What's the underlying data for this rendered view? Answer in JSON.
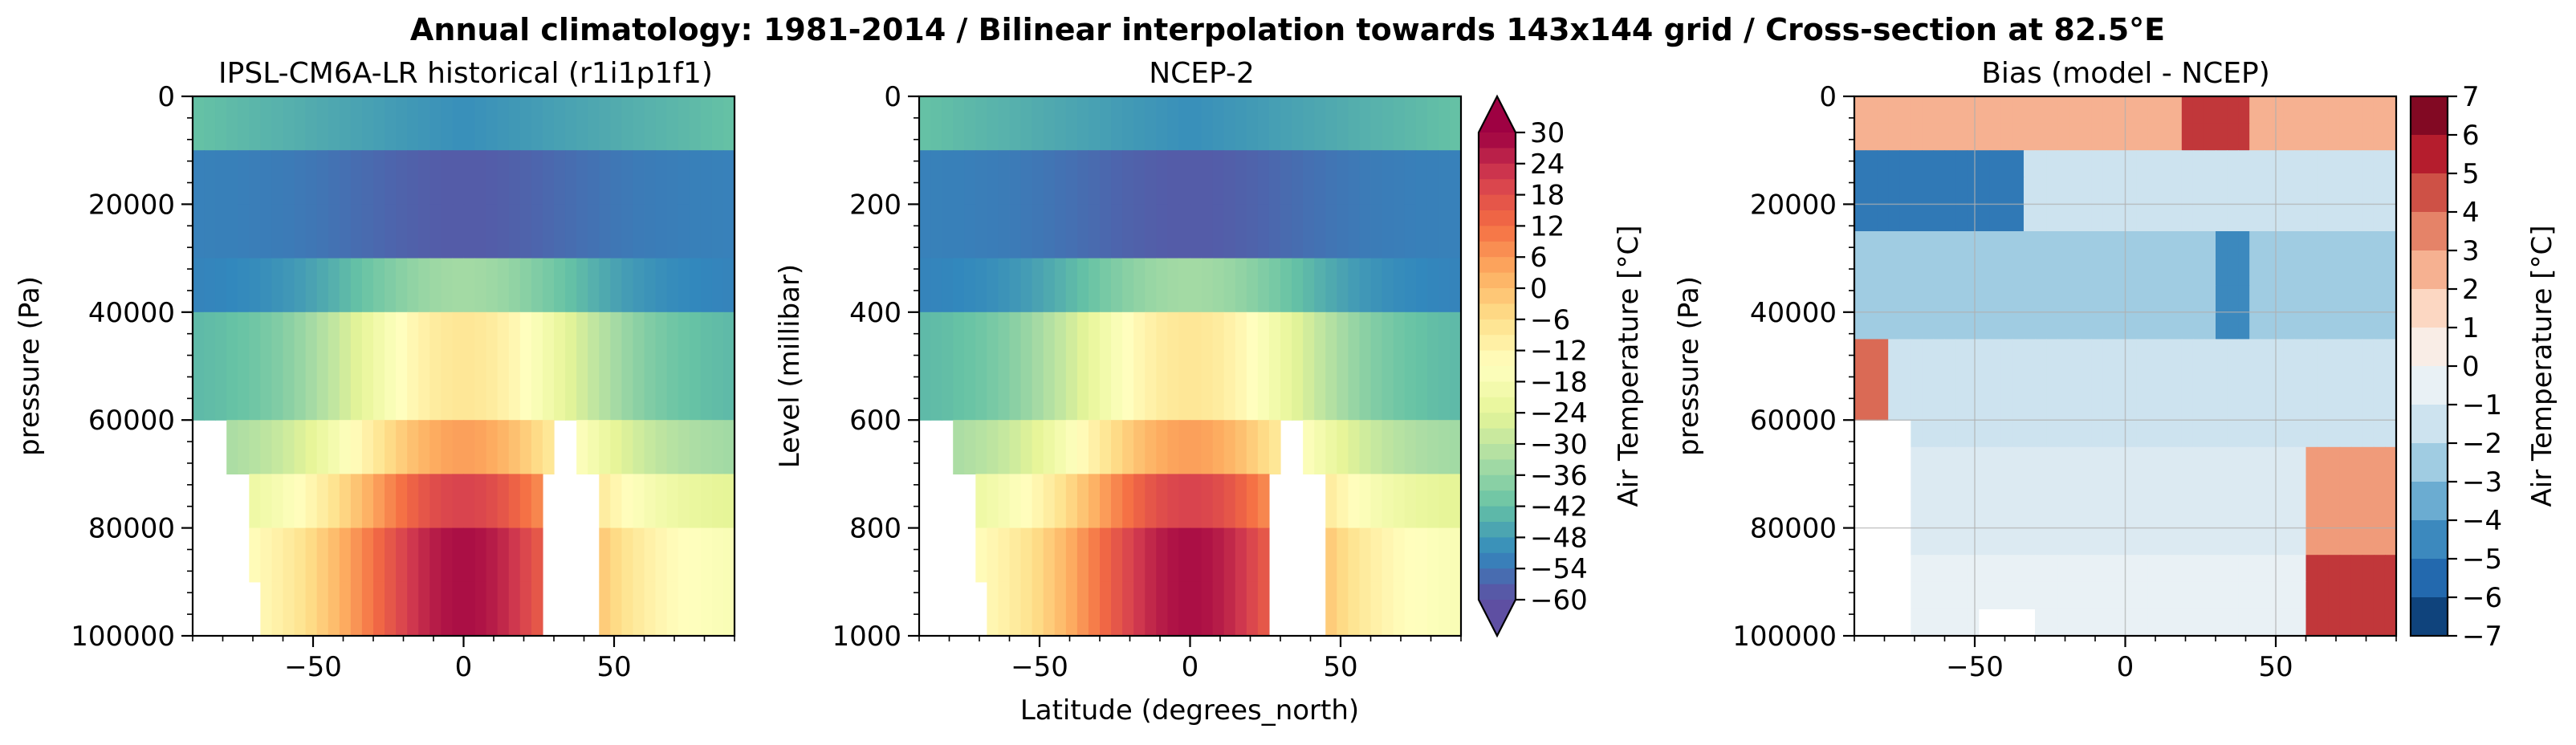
{
  "suptitle": "Annual climatology: 1981-2014 / Bilinear interpolation towards 143x144 grid / Cross-section at 82.5°E",
  "shared_xlabel": "Latitude (degrees_north)",
  "colors": {
    "spectral": [
      "#5e4fa2",
      "#3288bd",
      "#66c2a5",
      "#abdda4",
      "#e6f598",
      "#ffffbf",
      "#fee08b",
      "#fdae61",
      "#f46d43",
      "#d53e4f",
      "#9e0142"
    ],
    "rdbu": [
      "#053061",
      "#2166ac",
      "#4393c3",
      "#92c5de",
      "#d1e5f0",
      "#f7f7f7",
      "#fddbc7",
      "#f4a582",
      "#d6604d",
      "#b2182b",
      "#67001f"
    ]
  },
  "chart_data": [
    {
      "type": "heatmap",
      "title": "IPSL-CM6A-LR historical (r1i1p1f1)",
      "ylabel": "pressure (Pa)",
      "xlabel": "",
      "xlim": [
        -90,
        90
      ],
      "ylim": [
        100000,
        0
      ],
      "xticks": [
        "−50",
        "0",
        "50"
      ],
      "xtick_values": [
        -50,
        0,
        50
      ],
      "yticks": [
        "0",
        "20000",
        "40000",
        "60000",
        "80000",
        "100000"
      ],
      "ytick_values": [
        0,
        20000,
        40000,
        60000,
        80000,
        100000
      ],
      "grid": false,
      "variable": "Air Temperature",
      "units": "°C",
      "value_range": [
        -60,
        30
      ],
      "approx_profile_levels": [
        0,
        20000,
        40000,
        60000,
        80000,
        100000
      ],
      "approx_profile_equator_degC": [
        -55,
        -60,
        -30,
        -5,
        15,
        25
      ],
      "approx_profile_pole_degC": [
        -45,
        -55,
        -45,
        -35,
        -20,
        -10
      ]
    },
    {
      "type": "heatmap",
      "title": "NCEP-2",
      "ylabel": "Level (millibar)",
      "xlabel": "Latitude (degrees_north)",
      "xlim": [
        -90,
        90
      ],
      "ylim": [
        1000,
        0
      ],
      "xticks": [
        "−50",
        "0",
        "50"
      ],
      "xtick_values": [
        -50,
        0,
        50
      ],
      "yticks": [
        "0",
        "200",
        "400",
        "600",
        "800",
        "1000"
      ],
      "ytick_values": [
        0,
        200,
        400,
        600,
        800,
        1000
      ],
      "grid": false,
      "variable": "Air Temperature",
      "units": "°C",
      "value_range": [
        -60,
        30
      ],
      "colorbar": {
        "label": "Air Temperature [°C]",
        "ticks": [
          "30",
          "24",
          "18",
          "12",
          "6",
          "0",
          "−6",
          "−12",
          "−18",
          "−24",
          "−30",
          "−36",
          "−42",
          "−48",
          "−54",
          "−60"
        ],
        "tick_values": [
          30,
          24,
          18,
          12,
          6,
          0,
          -6,
          -12,
          -18,
          -24,
          -30,
          -36,
          -42,
          -48,
          -54,
          -60
        ],
        "extend": "both"
      }
    },
    {
      "type": "heatmap",
      "title": "Bias (model - NCEP)",
      "ylabel": "pressure (Pa)",
      "xlabel": "",
      "xlim": [
        -90,
        90
      ],
      "ylim": [
        100000,
        0
      ],
      "xticks": [
        "−50",
        "0",
        "50"
      ],
      "xtick_values": [
        -50,
        0,
        50
      ],
      "yticks": [
        "0",
        "20000",
        "40000",
        "60000",
        "80000",
        "100000"
      ],
      "ytick_values": [
        0,
        20000,
        40000,
        60000,
        80000,
        100000
      ],
      "grid": true,
      "variable": "Air Temperature bias",
      "units": "°C",
      "value_range": [
        -7,
        7
      ],
      "colorbar": {
        "label": "Air Temperature [°C]",
        "ticks": [
          "7",
          "6",
          "5",
          "4",
          "3",
          "2",
          "1",
          "0",
          "−1",
          "−2",
          "−3",
          "−4",
          "−5",
          "−6",
          "−7"
        ],
        "tick_values": [
          7,
          6,
          5,
          4,
          3,
          2,
          1,
          0,
          -1,
          -2,
          -3,
          -4,
          -5,
          -6,
          -7
        ]
      }
    }
  ]
}
